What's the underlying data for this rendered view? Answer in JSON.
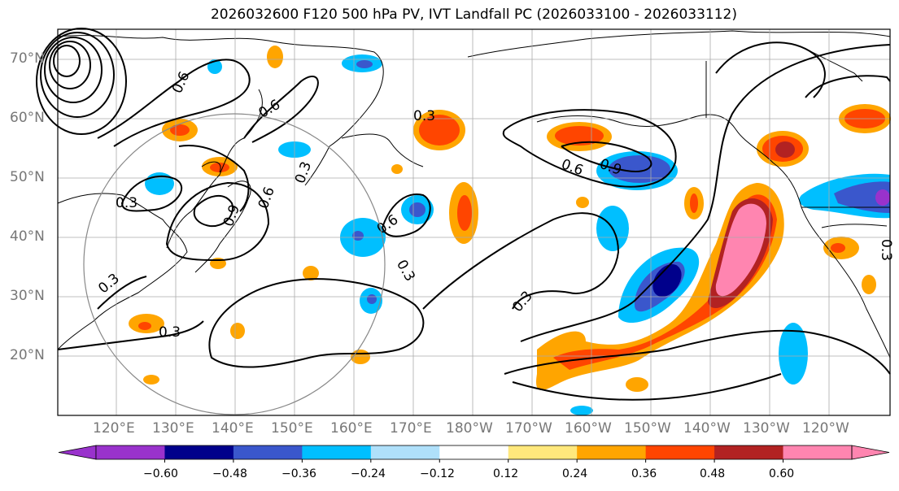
{
  "title": "2026032600 F120 500 hPa PV, IVT Landfall PC (2026033100 - 2026033112)",
  "lat_labels": [
    "70°N",
    "60°N",
    "50°N",
    "40°N",
    "30°N",
    "20°N"
  ],
  "lon_labels": [
    "120°E",
    "130°E",
    "140°E",
    "150°E",
    "160°E",
    "170°E",
    "180°W",
    "170°W",
    "160°W",
    "150°W",
    "140°W",
    "130°W",
    "120°W"
  ],
  "colorbar": {
    "ticks": [
      "−0.60",
      "−0.48",
      "−0.36",
      "−0.24",
      "−0.12",
      "0.12",
      "0.24",
      "0.36",
      "0.48",
      "0.60"
    ],
    "colors": [
      "#9932cc",
      "#00008b",
      "#3a57cc",
      "#00bfff",
      "#afe0fa",
      "#ffffff",
      "#ffe87c",
      "#ffa500",
      "#ff4500",
      "#b22222",
      "#ff85b0"
    ]
  },
  "contour_labels": [
    "0.3",
    "0.6",
    "0.9"
  ]
}
